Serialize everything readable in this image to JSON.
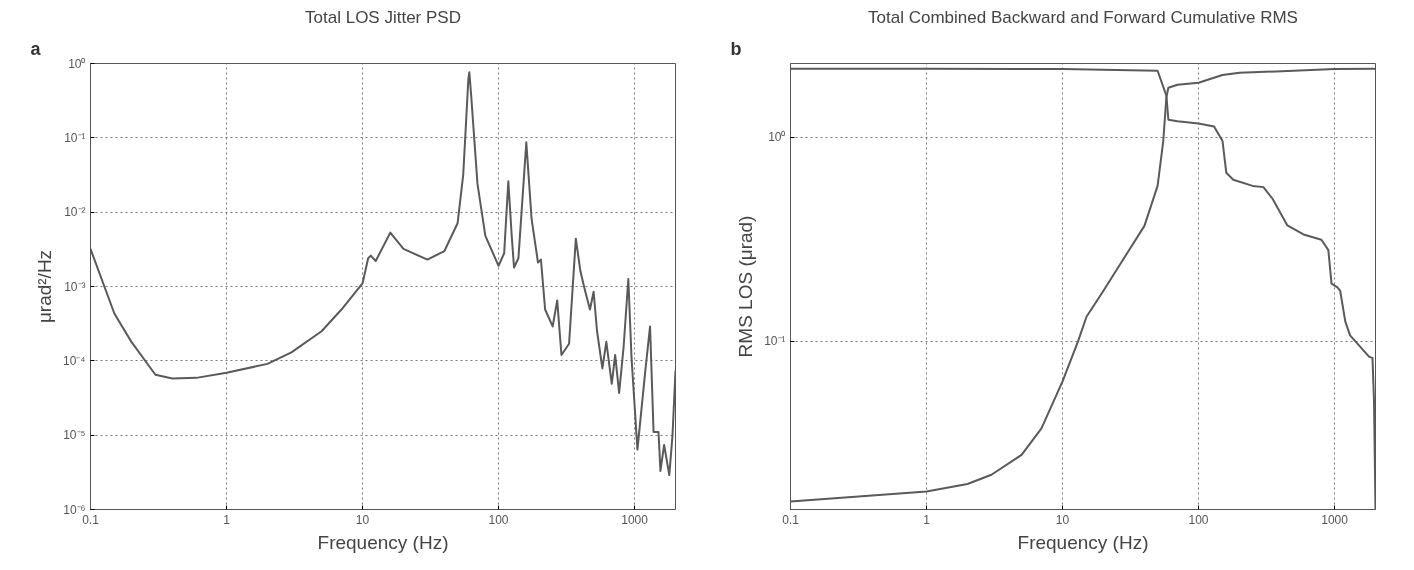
{
  "chart_data": [
    {
      "type": "line",
      "title": "Total LOS Jitter PSD",
      "xlabel": "Frequency (Hz)",
      "ylabel": "μrad²/Hz",
      "annotations": [
        "a"
      ],
      "log": "xy",
      "grid": true,
      "xlim": [
        0.1,
        2000
      ],
      "ylim": [
        1e-06,
        1
      ],
      "xticks": [
        0.1,
        1,
        10,
        100,
        1000
      ],
      "yticks": [
        {
          "value": 1e-06,
          "label": "10⁻⁶"
        },
        {
          "value": 1e-05,
          "label": "10⁻⁵"
        },
        {
          "value": 0.0001,
          "label": "10⁻⁴"
        },
        {
          "value": 0.001,
          "label": "10⁻³"
        },
        {
          "value": 0.01,
          "label": "10⁻²"
        },
        {
          "value": 0.1,
          "label": "10⁻¹"
        },
        {
          "value": 1,
          "label": "10⁰"
        }
      ],
      "series": [
        {
          "color": "#5a5a5a",
          "x": [
            0.1,
            0.15,
            0.2,
            0.3,
            0.4,
            0.6,
            1,
            2,
            3,
            5,
            7,
            10,
            11,
            11.5,
            12.5,
            16,
            20,
            30,
            40,
            50,
            55,
            60,
            61,
            63,
            70,
            80,
            100,
            110,
            118,
            125,
            130,
            140,
            160,
            175,
            195,
            205,
            220,
            250,
            270,
            290,
            330,
            370,
            400,
            430,
            470,
            500,
            530,
            580,
            620,
            680,
            720,
            770,
            830,
            900,
            950,
            1050,
            1100,
            1200,
            1300,
            1380,
            1500,
            1550,
            1650,
            1800,
            1900,
            2000
          ],
          "values": [
            0.0032,
            0.00043,
            0.00018,
            6.5e-05,
            5.8e-05,
            5.9e-05,
            6.9e-05,
            9.1e-05,
            0.00013,
            0.00025,
            0.00049,
            0.0011,
            0.0024,
            0.0026,
            0.0022,
            0.0053,
            0.0032,
            0.0023,
            0.003,
            0.0071,
            0.032,
            0.62,
            0.76,
            0.36,
            0.024,
            0.0048,
            0.0019,
            0.0028,
            0.026,
            0.0048,
            0.0018,
            0.0024,
            0.087,
            0.0081,
            0.0021,
            0.0023,
            0.00049,
            0.00029,
            0.00065,
            0.00012,
            0.00017,
            0.0044,
            0.0016,
            0.00092,
            0.00049,
            0.00085,
            0.00025,
            7.9e-05,
            0.00018,
            4.9e-05,
            0.00012,
            3.7e-05,
            0.00015,
            0.00126,
            0.00011,
            6.4e-06,
            1.5e-05,
            7.4e-05,
            0.00029,
            1.1e-05,
            1.1e-05,
            3.3e-06,
            7.4e-06,
            2.9e-06,
            9.8e-06,
            7.4e-05
          ]
        }
      ]
    },
    {
      "type": "line",
      "title": "Total Combined Backward and Forward Cumulative RMS",
      "xlabel": "Frequency (Hz)",
      "ylabel": "RMS LOS (μrad)",
      "annotations": [
        "b"
      ],
      "log": "xy",
      "grid": true,
      "xlim": [
        0.1,
        2000
      ],
      "ylim": [
        0.015,
        2.3
      ],
      "xticks": [
        0.1,
        1,
        10,
        100,
        1000
      ],
      "yticks": [
        {
          "value": 0.1,
          "label": "10⁻¹"
        },
        {
          "value": 1,
          "label": "10⁰"
        }
      ],
      "series": [
        {
          "color": "#5a5a5a",
          "x": [
            0.1,
            1,
            2,
            3,
            5,
            7,
            10,
            13,
            15,
            20,
            30,
            40,
            50,
            55,
            58,
            60,
            70,
            100,
            150,
            200,
            500,
            1000,
            2000
          ],
          "values": [
            0.0164,
            0.0184,
            0.02,
            0.0222,
            0.0278,
            0.0375,
            0.0637,
            0.1,
            0.132,
            0.177,
            0.272,
            0.368,
            0.578,
            0.955,
            1.57,
            1.75,
            1.81,
            1.85,
            2.02,
            2.07,
            2.12,
            2.16,
            2.17
          ]
        },
        {
          "color": "#5a5a5a",
          "x": [
            0.1,
            1,
            10,
            50,
            58,
            60,
            70,
            100,
            130,
            150,
            160,
            180,
            250,
            300,
            350,
            450,
            600,
            800,
            900,
            950,
            1050,
            1100,
            1200,
            1300,
            1800,
            1900,
            1950,
            2000
          ],
          "values": [
            2.17,
            2.17,
            2.16,
            2.12,
            1.6,
            1.22,
            1.2,
            1.17,
            1.13,
            0.96,
            0.67,
            0.62,
            0.578,
            0.57,
            0.5,
            0.37,
            0.333,
            0.315,
            0.28,
            0.192,
            0.184,
            0.177,
            0.125,
            0.107,
            0.084,
            0.083,
            0.051,
            0.015
          ]
        }
      ]
    }
  ]
}
